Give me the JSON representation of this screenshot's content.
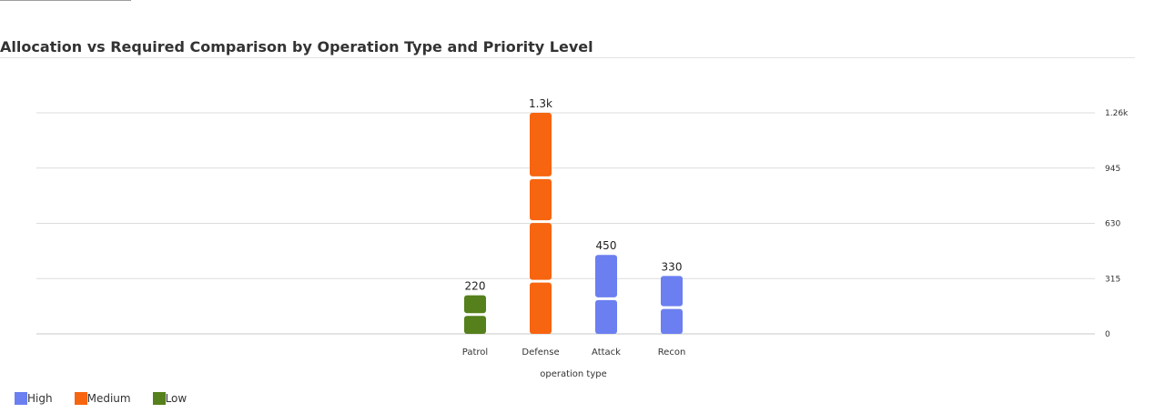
{
  "chart_data": {
    "type": "bar",
    "stacked": true,
    "title": "Allocation vs Required Comparison by Operation Type and Priority Level",
    "xlabel": "operation type",
    "ylabel": "",
    "categories": [
      "Patrol",
      "Defense",
      "Attack",
      "Recon"
    ],
    "y_ticks": [
      {
        "value": 0,
        "label": "0"
      },
      {
        "value": 315,
        "label": "315"
      },
      {
        "value": 630,
        "label": "630"
      },
      {
        "value": 945,
        "label": "945"
      },
      {
        "value": 1260,
        "label": "1.26k"
      }
    ],
    "ylim": [
      0,
      1260
    ],
    "y_axis_position": "right",
    "grid": true,
    "legend_position": "bottom-left",
    "series": [
      {
        "name": "High",
        "color": "#6b7ff0",
        "values": [
          0,
          0,
          450,
          330
        ]
      },
      {
        "name": "Medium",
        "color": "#f76511",
        "values": [
          0,
          1260,
          0,
          0
        ]
      },
      {
        "name": "Low",
        "color": "#55801b",
        "values": [
          220,
          0,
          0,
          0
        ]
      }
    ],
    "segments": [
      {
        "category": "Patrol",
        "series": "Low",
        "values": [
          110,
          110
        ]
      },
      {
        "category": "Defense",
        "series": "Medium",
        "values": [
          300,
          340,
          250,
          370
        ]
      },
      {
        "category": "Attack",
        "series": "High",
        "values": [
          200,
          250
        ]
      },
      {
        "category": "Recon",
        "series": "High",
        "values": [
          150,
          180
        ]
      }
    ],
    "total_labels": [
      {
        "category": "Patrol",
        "value": 220,
        "label": "220"
      },
      {
        "category": "Defense",
        "value": 1260,
        "label": "1.3k"
      },
      {
        "category": "Attack",
        "value": 450,
        "label": "450"
      },
      {
        "category": "Recon",
        "value": 330,
        "label": "330"
      }
    ]
  }
}
